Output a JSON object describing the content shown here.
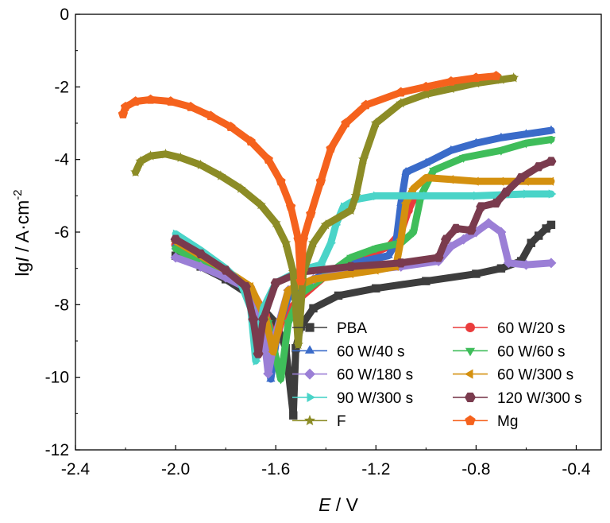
{
  "chart_data": {
    "type": "line",
    "title": "",
    "xlabel": {
      "symbol": "E",
      "unit": " / V"
    },
    "ylabel": {
      "symbol": "lg",
      "italic": "I",
      "unit": " / A·cm",
      "sup": "-2"
    },
    "xlim": [
      -2.4,
      -0.3
    ],
    "ylim": [
      -12,
      0
    ],
    "xticks": [
      -2.4,
      -2.0,
      -1.6,
      -1.2,
      -0.8,
      -0.4
    ],
    "yticks": [
      0,
      -2,
      -4,
      -6,
      -8,
      -10,
      -12
    ],
    "xtick_labels": [
      "-2.4",
      "-2.0",
      "-1.6",
      "-1.2",
      "-0.8",
      "-0.4"
    ],
    "ytick_labels": [
      "0",
      "-2",
      "-4",
      "-6",
      "-8",
      "-10",
      "-12"
    ],
    "grid": false,
    "legend_position": "bottom-right",
    "series": [
      {
        "name": "PBA",
        "color": "#3d3d3d",
        "marker": "square",
        "points": [
          [
            -2.0,
            -6.65
          ],
          [
            -1.9,
            -6.95
          ],
          [
            -1.8,
            -7.3
          ],
          [
            -1.7,
            -7.75
          ],
          [
            -1.6,
            -8.5
          ],
          [
            -1.56,
            -9.2
          ],
          [
            -1.53,
            -11.05
          ],
          [
            -1.52,
            -9.2
          ],
          [
            -1.5,
            -8.6
          ],
          [
            -1.45,
            -8.1
          ],
          [
            -1.35,
            -7.75
          ],
          [
            -1.2,
            -7.55
          ],
          [
            -1.0,
            -7.35
          ],
          [
            -0.8,
            -7.15
          ],
          [
            -0.7,
            -7.0
          ],
          [
            -0.62,
            -6.8
          ],
          [
            -0.58,
            -6.3
          ],
          [
            -0.55,
            -6.1
          ],
          [
            -0.52,
            -5.9
          ],
          [
            -0.5,
            -5.8
          ]
        ]
      },
      {
        "name": "60 W/20 s",
        "color": "#ea3c3c",
        "marker": "circle",
        "points": [
          [
            -2.0,
            -6.35
          ],
          [
            -1.9,
            -6.8
          ],
          [
            -1.8,
            -7.15
          ],
          [
            -1.7,
            -7.55
          ],
          [
            -1.64,
            -8.3
          ],
          [
            -1.6,
            -9.0
          ],
          [
            -1.57,
            -8.3
          ],
          [
            -1.5,
            -7.8
          ],
          [
            -1.4,
            -7.2
          ],
          [
            -1.3,
            -6.85
          ],
          [
            -1.2,
            -6.55
          ],
          [
            -1.15,
            -6.4
          ],
          [
            -1.1,
            -6.0
          ],
          [
            -1.07,
            -5.4
          ],
          [
            -1.05,
            -5.1
          ]
        ]
      },
      {
        "name": "60 W/40 s",
        "color": "#3a6bc9",
        "marker": "triangle-up",
        "points": [
          [
            -2.0,
            -6.4
          ],
          [
            -1.9,
            -6.8
          ],
          [
            -1.8,
            -7.2
          ],
          [
            -1.7,
            -7.6
          ],
          [
            -1.65,
            -8.6
          ],
          [
            -1.62,
            -10.05
          ],
          [
            -1.59,
            -8.6
          ],
          [
            -1.55,
            -7.8
          ],
          [
            -1.45,
            -7.3
          ],
          [
            -1.35,
            -7.0
          ],
          [
            -1.25,
            -6.8
          ],
          [
            -1.15,
            -6.65
          ],
          [
            -1.12,
            -6.3
          ],
          [
            -1.1,
            -5.2
          ],
          [
            -1.08,
            -4.35
          ],
          [
            -1.0,
            -4.1
          ],
          [
            -0.9,
            -3.75
          ],
          [
            -0.8,
            -3.55
          ],
          [
            -0.7,
            -3.4
          ],
          [
            -0.6,
            -3.3
          ],
          [
            -0.5,
            -3.2
          ]
        ]
      },
      {
        "name": "60 W/60 s",
        "color": "#3fbd5a",
        "marker": "triangle-down",
        "points": [
          [
            -2.0,
            -6.45
          ],
          [
            -1.9,
            -6.85
          ],
          [
            -1.8,
            -7.2
          ],
          [
            -1.7,
            -7.6
          ],
          [
            -1.63,
            -8.5
          ],
          [
            -1.58,
            -10.05
          ],
          [
            -1.55,
            -8.5
          ],
          [
            -1.5,
            -7.7
          ],
          [
            -1.4,
            -7.2
          ],
          [
            -1.3,
            -6.7
          ],
          [
            -1.2,
            -6.45
          ],
          [
            -1.1,
            -6.3
          ],
          [
            -1.05,
            -6.0
          ],
          [
            -1.02,
            -5.0
          ],
          [
            -0.97,
            -4.3
          ],
          [
            -0.85,
            -3.95
          ],
          [
            -0.7,
            -3.75
          ],
          [
            -0.6,
            -3.55
          ],
          [
            -0.5,
            -3.45
          ]
        ]
      },
      {
        "name": "60 W/180 s",
        "color": "#9b7fd6",
        "marker": "diamond",
        "points": [
          [
            -2.0,
            -6.7
          ],
          [
            -1.9,
            -6.95
          ],
          [
            -1.8,
            -7.25
          ],
          [
            -1.7,
            -7.6
          ],
          [
            -1.65,
            -8.7
          ],
          [
            -1.63,
            -9.9
          ],
          [
            -1.6,
            -8.8
          ],
          [
            -1.55,
            -7.6
          ],
          [
            -1.45,
            -7.3
          ],
          [
            -1.3,
            -7.1
          ],
          [
            -1.1,
            -6.95
          ],
          [
            -0.95,
            -6.8
          ],
          [
            -0.9,
            -6.4
          ],
          [
            -0.85,
            -6.2
          ],
          [
            -0.8,
            -6.0
          ],
          [
            -0.75,
            -5.75
          ],
          [
            -0.7,
            -6.0
          ],
          [
            -0.67,
            -6.85
          ],
          [
            -0.6,
            -6.9
          ],
          [
            -0.5,
            -6.85
          ]
        ]
      },
      {
        "name": "60 W/300 s",
        "color": "#d4900f",
        "marker": "triangle-left",
        "points": [
          [
            -2.0,
            -6.25
          ],
          [
            -1.9,
            -6.65
          ],
          [
            -1.8,
            -7.05
          ],
          [
            -1.7,
            -7.5
          ],
          [
            -1.64,
            -8.4
          ],
          [
            -1.61,
            -9.3
          ],
          [
            -1.58,
            -8.4
          ],
          [
            -1.55,
            -7.6
          ],
          [
            -1.45,
            -7.3
          ],
          [
            -1.3,
            -7.15
          ],
          [
            -1.2,
            -7.05
          ],
          [
            -1.12,
            -6.95
          ],
          [
            -1.1,
            -6.2
          ],
          [
            -1.08,
            -5.2
          ],
          [
            -1.05,
            -4.8
          ],
          [
            -1.0,
            -4.5
          ],
          [
            -0.9,
            -4.55
          ],
          [
            -0.8,
            -4.6
          ],
          [
            -0.7,
            -4.6
          ],
          [
            -0.6,
            -4.6
          ],
          [
            -0.5,
            -4.6
          ]
        ]
      },
      {
        "name": "90 W/300 s",
        "color": "#4ad4c8",
        "marker": "triangle-right",
        "points": [
          [
            -2.0,
            -6.05
          ],
          [
            -1.9,
            -6.5
          ],
          [
            -1.8,
            -7.0
          ],
          [
            -1.74,
            -7.4
          ],
          [
            -1.7,
            -8.1
          ],
          [
            -1.68,
            -9.55
          ],
          [
            -1.65,
            -8.1
          ],
          [
            -1.6,
            -7.4
          ],
          [
            -1.5,
            -7.05
          ],
          [
            -1.42,
            -6.9
          ],
          [
            -1.38,
            -6.3
          ],
          [
            -1.36,
            -5.8
          ],
          [
            -1.33,
            -5.3
          ],
          [
            -1.28,
            -5.1
          ],
          [
            -1.2,
            -5.0
          ],
          [
            -1.0,
            -5.0
          ],
          [
            -0.8,
            -5.0
          ],
          [
            -0.6,
            -4.95
          ],
          [
            -0.5,
            -4.95
          ]
        ]
      },
      {
        "name": "120 W/300 s",
        "color": "#7a3b4e",
        "marker": "hexagon",
        "points": [
          [
            -2.0,
            -6.2
          ],
          [
            -1.9,
            -6.6
          ],
          [
            -1.8,
            -7.05
          ],
          [
            -1.72,
            -7.5
          ],
          [
            -1.69,
            -8.4
          ],
          [
            -1.67,
            -9.35
          ],
          [
            -1.65,
            -8.4
          ],
          [
            -1.6,
            -7.4
          ],
          [
            -1.5,
            -7.1
          ],
          [
            -1.3,
            -6.95
          ],
          [
            -1.1,
            -6.85
          ],
          [
            -0.95,
            -6.7
          ],
          [
            -0.92,
            -6.2
          ],
          [
            -0.88,
            -5.9
          ],
          [
            -0.82,
            -5.95
          ],
          [
            -0.78,
            -5.3
          ],
          [
            -0.72,
            -5.2
          ],
          [
            -0.68,
            -4.9
          ],
          [
            -0.62,
            -4.5
          ],
          [
            -0.55,
            -4.2
          ],
          [
            -0.5,
            -4.05
          ]
        ]
      },
      {
        "name": "F",
        "color": "#8c8c26",
        "marker": "star",
        "points": [
          [
            -2.16,
            -4.35
          ],
          [
            -2.14,
            -4.05
          ],
          [
            -2.1,
            -3.9
          ],
          [
            -2.04,
            -3.85
          ],
          [
            -1.98,
            -3.95
          ],
          [
            -1.9,
            -4.15
          ],
          [
            -1.82,
            -4.45
          ],
          [
            -1.74,
            -4.8
          ],
          [
            -1.66,
            -5.25
          ],
          [
            -1.6,
            -5.75
          ],
          [
            -1.56,
            -6.3
          ],
          [
            -1.53,
            -7.1
          ],
          [
            -1.51,
            -9.1
          ],
          [
            -1.49,
            -7.1
          ],
          [
            -1.45,
            -6.3
          ],
          [
            -1.4,
            -5.8
          ],
          [
            -1.3,
            -5.4
          ],
          [
            -1.28,
            -5.0
          ],
          [
            -1.25,
            -4.0
          ],
          [
            -1.2,
            -3.0
          ],
          [
            -1.1,
            -2.45
          ],
          [
            -1.0,
            -2.2
          ],
          [
            -0.9,
            -2.05
          ],
          [
            -0.8,
            -1.9
          ],
          [
            -0.7,
            -1.8
          ],
          [
            -0.65,
            -1.75
          ]
        ]
      },
      {
        "name": "Mg",
        "color": "#f5621d",
        "marker": "pentagon",
        "points": [
          [
            -2.21,
            -2.75
          ],
          [
            -2.2,
            -2.55
          ],
          [
            -2.16,
            -2.4
          ],
          [
            -2.1,
            -2.35
          ],
          [
            -2.02,
            -2.4
          ],
          [
            -1.94,
            -2.55
          ],
          [
            -1.86,
            -2.8
          ],
          [
            -1.78,
            -3.1
          ],
          [
            -1.7,
            -3.5
          ],
          [
            -1.63,
            -4.0
          ],
          [
            -1.58,
            -4.6
          ],
          [
            -1.54,
            -5.3
          ],
          [
            -1.51,
            -6.2
          ],
          [
            -1.5,
            -7.35
          ],
          [
            -1.49,
            -6.2
          ],
          [
            -1.46,
            -5.5
          ],
          [
            -1.42,
            -4.6
          ],
          [
            -1.38,
            -3.7
          ],
          [
            -1.32,
            -3.0
          ],
          [
            -1.24,
            -2.5
          ],
          [
            -1.1,
            -2.15
          ],
          [
            -1.0,
            -2.0
          ],
          [
            -0.9,
            -1.85
          ],
          [
            -0.8,
            -1.75
          ],
          [
            -0.72,
            -1.7
          ]
        ]
      }
    ]
  }
}
